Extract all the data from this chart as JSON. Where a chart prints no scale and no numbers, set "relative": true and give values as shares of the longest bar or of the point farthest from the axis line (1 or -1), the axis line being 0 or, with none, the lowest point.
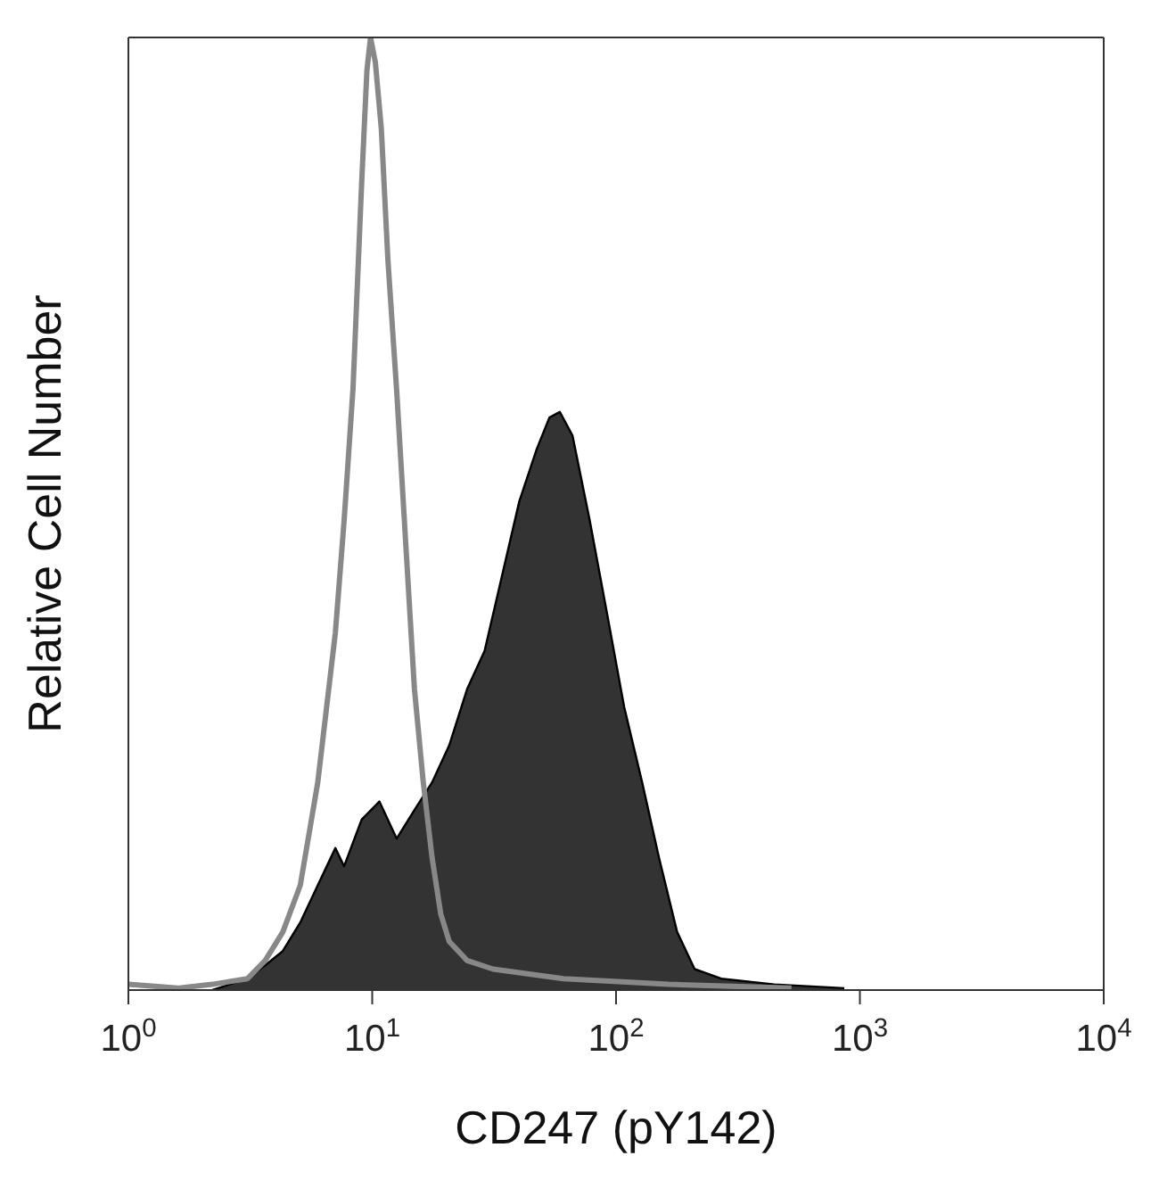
{
  "chart_data": {
    "type": "area",
    "xlabel": "CD247 (pY142)",
    "ylabel": "Relative Cell Number",
    "relative": true,
    "log": "x",
    "grid": false,
    "xlim": [
      1,
      10000
    ],
    "xticks": [
      {
        "value": 1,
        "label": "10$^{0}$"
      },
      {
        "value": 10,
        "label": "10$^{1}$"
      },
      {
        "value": 100,
        "label": "10$^{2}$"
      },
      {
        "value": 1000,
        "label": "10$^{3}$"
      },
      {
        "value": 10000,
        "label": "10$^{4}$"
      }
    ],
    "series": [
      {
        "color": "#333333",
        "x": [
          2.21,
          3.08,
          3.64,
          4.3,
          5.07,
          5.98,
          7.06,
          7.67,
          9.05,
          10.7,
          12.6,
          14.9,
          17.6,
          20.7,
          24.5,
          28.9,
          34,
          40.1,
          47.3,
          53.3,
          58.8,
          66.3,
          78,
          91.9,
          108,
          128,
          150,
          178,
          210,
          270,
          445,
          863
        ],
        "values": [
          0,
          0.012,
          0.026,
          0.041,
          0.071,
          0.11,
          0.149,
          0.13,
          0.179,
          0.198,
          0.159,
          0.189,
          0.218,
          0.257,
          0.316,
          0.356,
          0.434,
          0.513,
          0.568,
          0.601,
          0.607,
          0.582,
          0.493,
          0.395,
          0.297,
          0.218,
          0.139,
          0.061,
          0.022,
          0.012,
          0.006,
          0.002
        ]
      },
      {
        "type": "line",
        "color": "#888888",
        "x": [
          1,
          1.59,
          2.21,
          3.08,
          3.64,
          4.3,
          5.07,
          5.98,
          7.06,
          7.67,
          8.34,
          9.05,
          9.51,
          9.84,
          10.3,
          10.9,
          11.6,
          12.6,
          13.7,
          14.9,
          16.2,
          17.6,
          19.1,
          20.7,
          24.5,
          31.3,
          60.8,
          164,
          524
        ],
        "values": [
          0.006,
          0.002,
          0.006,
          0.012,
          0.031,
          0.061,
          0.11,
          0.218,
          0.375,
          0.493,
          0.631,
          0.847,
          0.965,
          1,
          0.974,
          0.904,
          0.766,
          0.629,
          0.472,
          0.316,
          0.218,
          0.139,
          0.08,
          0.051,
          0.031,
          0.022,
          0.012,
          0.006,
          0.002
        ]
      }
    ]
  }
}
